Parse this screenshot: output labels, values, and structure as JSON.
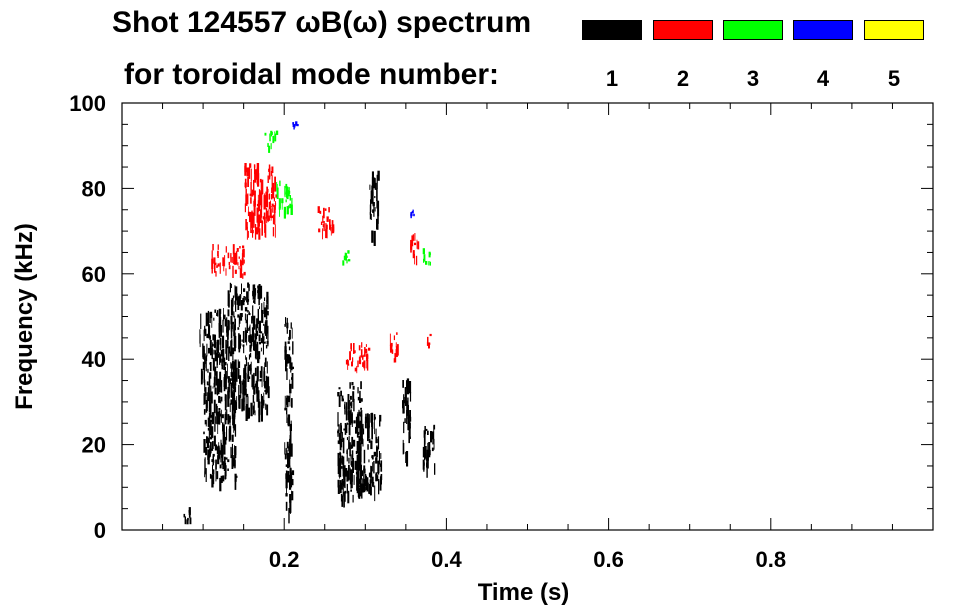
{
  "title": {
    "line1": "Shot 124557 ωB(ω) spectrum",
    "line2": "for toroidal mode number:"
  },
  "legend": [
    {
      "mode": "1",
      "color": "#000000"
    },
    {
      "mode": "2",
      "color": "#ff0000"
    },
    {
      "mode": "3",
      "color": "#00ff00"
    },
    {
      "mode": "4",
      "color": "#0000ff"
    },
    {
      "mode": "5",
      "color": "#ffff00"
    }
  ],
  "chart_data": {
    "type": "heatmap",
    "title": "Shot 124557 ωB(ω) spectrum for toroidal mode number",
    "xlabel": "Time (s)",
    "ylabel": "Frequency (kHz)",
    "xlim": [
      0.0,
      1.0
    ],
    "ylim": [
      0,
      100
    ],
    "xticks": [
      0.2,
      0.4,
      0.6,
      0.8
    ],
    "xtick_labels": [
      "0.2",
      "0.4",
      "0.6",
      "0.8"
    ],
    "yticks": [
      0,
      20,
      40,
      60,
      80,
      100
    ],
    "ytick_labels": [
      "0",
      "20",
      "40",
      "60",
      "80",
      "100"
    ],
    "series": [
      {
        "name": "n=1",
        "color": "#000000",
        "regions": [
          {
            "t": [
              0.095,
              0.135
            ],
            "f": [
              33,
              52
            ]
          },
          {
            "t": [
              0.1,
              0.14
            ],
            "f": [
              12,
              33
            ]
          },
          {
            "t": [
              0.13,
              0.18
            ],
            "f": [
              28,
              58
            ]
          },
          {
            "t": [
              0.075,
              0.085
            ],
            "f": [
              2,
              6
            ]
          },
          {
            "t": [
              0.265,
              0.295
            ],
            "f": [
              8,
              35
            ]
          },
          {
            "t": [
              0.29,
              0.32
            ],
            "f": [
              10,
              28
            ]
          },
          {
            "t": [
              0.305,
              0.315
            ],
            "f": [
              70,
              85
            ]
          },
          {
            "t": [
              0.345,
              0.355
            ],
            "f": [
              18,
              36
            ]
          },
          {
            "t": [
              0.37,
              0.385
            ],
            "f": [
              15,
              25
            ]
          },
          {
            "t": [
              0.2,
              0.21
            ],
            "f": [
              5,
              50
            ]
          }
        ]
      },
      {
        "name": "n=2",
        "color": "#ff0000",
        "regions": [
          {
            "t": [
              0.11,
              0.15
            ],
            "f": [
              60,
              67
            ]
          },
          {
            "t": [
              0.15,
              0.19
            ],
            "f": [
              70,
              86
            ]
          },
          {
            "t": [
              0.24,
              0.26
            ],
            "f": [
              70,
              76
            ]
          },
          {
            "t": [
              0.275,
              0.305
            ],
            "f": [
              38,
              44
            ]
          },
          {
            "t": [
              0.33,
              0.34
            ],
            "f": [
              40,
              47
            ]
          },
          {
            "t": [
              0.355,
              0.365
            ],
            "f": [
              64,
              70
            ]
          },
          {
            "t": [
              0.375,
              0.38
            ],
            "f": [
              43,
              46
            ]
          }
        ]
      },
      {
        "name": "n=3",
        "color": "#00ff00",
        "regions": [
          {
            "t": [
              0.19,
              0.21
            ],
            "f": [
              75,
              82
            ]
          },
          {
            "t": [
              0.175,
              0.19
            ],
            "f": [
              90,
              94
            ]
          },
          {
            "t": [
              0.27,
              0.28
            ],
            "f": [
              62,
              66
            ]
          },
          {
            "t": [
              0.37,
              0.38
            ],
            "f": [
              62,
              66
            ]
          }
        ]
      },
      {
        "name": "n=4",
        "color": "#0000ff",
        "regions": [
          {
            "t": [
              0.21,
              0.215
            ],
            "f": [
              94,
              96
            ]
          },
          {
            "t": [
              0.355,
              0.36
            ],
            "f": [
              74,
              76
            ]
          }
        ]
      },
      {
        "name": "n=5",
        "color": "#ffff00",
        "regions": []
      }
    ]
  }
}
